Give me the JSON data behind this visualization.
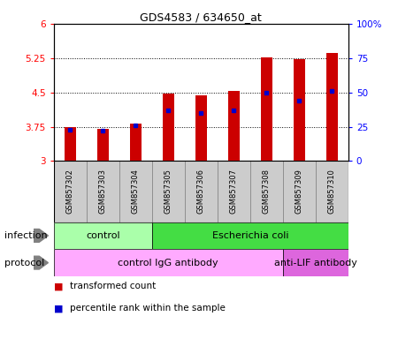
{
  "title": "GDS4583 / 634650_at",
  "samples": [
    "GSM857302",
    "GSM857303",
    "GSM857304",
    "GSM857305",
    "GSM857306",
    "GSM857307",
    "GSM857308",
    "GSM857309",
    "GSM857310"
  ],
  "transformed_counts": [
    3.74,
    3.7,
    3.81,
    4.48,
    4.43,
    4.54,
    5.27,
    5.22,
    5.37
  ],
  "percentile_ranks": [
    23,
    22,
    26,
    37,
    35,
    37,
    50,
    44,
    51
  ],
  "y_min": 3.0,
  "y_max": 6.0,
  "y_ticks": [
    3,
    3.75,
    4.5,
    5.25,
    6
  ],
  "y_tick_labels": [
    "3",
    "3.75",
    "4.5",
    "5.25",
    "6"
  ],
  "right_y_ticks": [
    0,
    25,
    50,
    75,
    100
  ],
  "right_y_tick_labels": [
    "0",
    "25",
    "50",
    "75",
    "100%"
  ],
  "bar_color": "#cc0000",
  "blue_color": "#0000cc",
  "bar_width": 0.35,
  "infection_labels": [
    {
      "text": "control",
      "start": 0,
      "end": 3,
      "color": "#aaffaa"
    },
    {
      "text": "Escherichia coli",
      "start": 3,
      "end": 9,
      "color": "#44dd44"
    }
  ],
  "protocol_labels": [
    {
      "text": "control IgG antibody",
      "start": 0,
      "end": 7,
      "color": "#ffaaff"
    },
    {
      "text": "anti-LIF antibody",
      "start": 7,
      "end": 9,
      "color": "#dd66dd"
    }
  ],
  "legend_items": [
    {
      "color": "#cc0000",
      "label": "transformed count"
    },
    {
      "color": "#0000cc",
      "label": "percentile rank within the sample"
    }
  ],
  "sample_bg_color": "#cccccc",
  "annotation_label_infection": "infection",
  "annotation_label_protocol": "protocol"
}
